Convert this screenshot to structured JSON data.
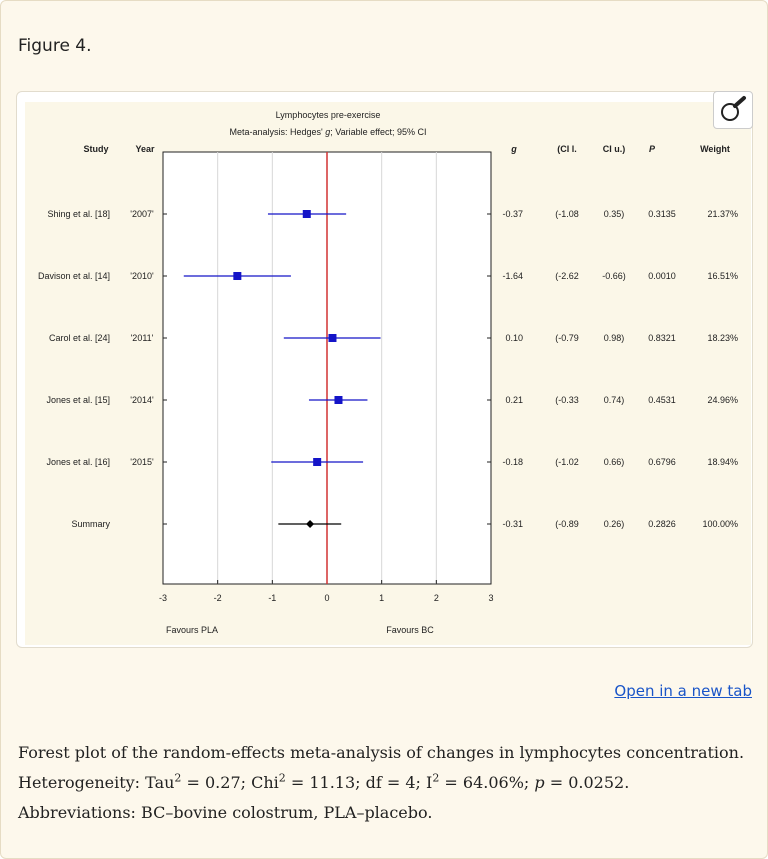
{
  "figure_label": "Figure 4.",
  "open_link": "Open in a new tab",
  "caption": {
    "line1": "Forest plot of the random-effects meta-analysis of changes in lymphocytes concentration.",
    "het_prefix": "Heterogeneity: Tau",
    "tau_sup": "2",
    "tau_val": " = 0.27; Chi",
    "chi_sup": "2",
    "chi_val": " = 11.13; df = 4; I",
    "i_sup": "2",
    "i_val": " = 64.06%; ",
    "p_italic": "p",
    "p_val": " = 0.0252. Abbreviations: BC–bovine colostrum, PLA–placebo."
  },
  "chart_data": {
    "type": "forest",
    "title": "Lymphocytes pre-exercise",
    "subtitle_pre": "Meta-analysis: Hedges' ",
    "subtitle_g": "g",
    "subtitle_post": "; Variable effect; 95% CI",
    "xlim": [
      -3,
      3
    ],
    "xticks": [
      "-3",
      "-2",
      "-1",
      "0",
      "1",
      "2",
      "3"
    ],
    "favours_left": "Favours PLA",
    "favours_right": "Favours BC",
    "headers": {
      "study": "Study",
      "year": "Year",
      "g": "g",
      "cil": "(CI l.",
      "ciu": "CI u.)",
      "p": "P",
      "weight": "Weight"
    },
    "colors": {
      "study": "#1414c8",
      "summary": "#000000",
      "zero_line": "#d23232"
    },
    "studies": [
      {
        "study": "Shing et al. [18]",
        "year": "'2007'",
        "g": -0.37,
        "cil": -1.08,
        "ciu": 0.35,
        "g_text": "-0.37",
        "cil_text": "(-1.08",
        "ciu_text": "0.35)",
        "p": "0.3135",
        "weight": "21.37%"
      },
      {
        "study": "Davison et al. [14]",
        "year": "'2010'",
        "g": -1.64,
        "cil": -2.62,
        "ciu": -0.66,
        "g_text": "-1.64",
        "cil_text": "(-2.62",
        "ciu_text": "-0.66)",
        "p": "0.0010",
        "weight": "16.51%"
      },
      {
        "study": "Carol et al. [24]",
        "year": "'2011'",
        "g": 0.1,
        "cil": -0.79,
        "ciu": 0.98,
        "g_text": "0.10",
        "cil_text": "(-0.79",
        "ciu_text": "0.98)",
        "p": "0.8321",
        "weight": "18.23%"
      },
      {
        "study": "Jones et al. [15]",
        "year": "'2014'",
        "g": 0.21,
        "cil": -0.33,
        "ciu": 0.74,
        "g_text": "0.21",
        "cil_text": "(-0.33",
        "ciu_text": "0.74)",
        "p": "0.4531",
        "weight": "24.96%"
      },
      {
        "study": "Jones et al. [16]",
        "year": "'2015'",
        "g": -0.18,
        "cil": -1.02,
        "ciu": 0.66,
        "g_text": "-0.18",
        "cil_text": "(-1.02",
        "ciu_text": "0.66)",
        "p": "0.6796",
        "weight": "18.94%"
      }
    ],
    "summary": {
      "study": "Summary",
      "g": -0.31,
      "cil": -0.89,
      "ciu": 0.26,
      "g_text": "-0.31",
      "cil_text": "(-0.89",
      "ciu_text": "0.26)",
      "p": "0.2826",
      "weight": "100.00%"
    }
  }
}
